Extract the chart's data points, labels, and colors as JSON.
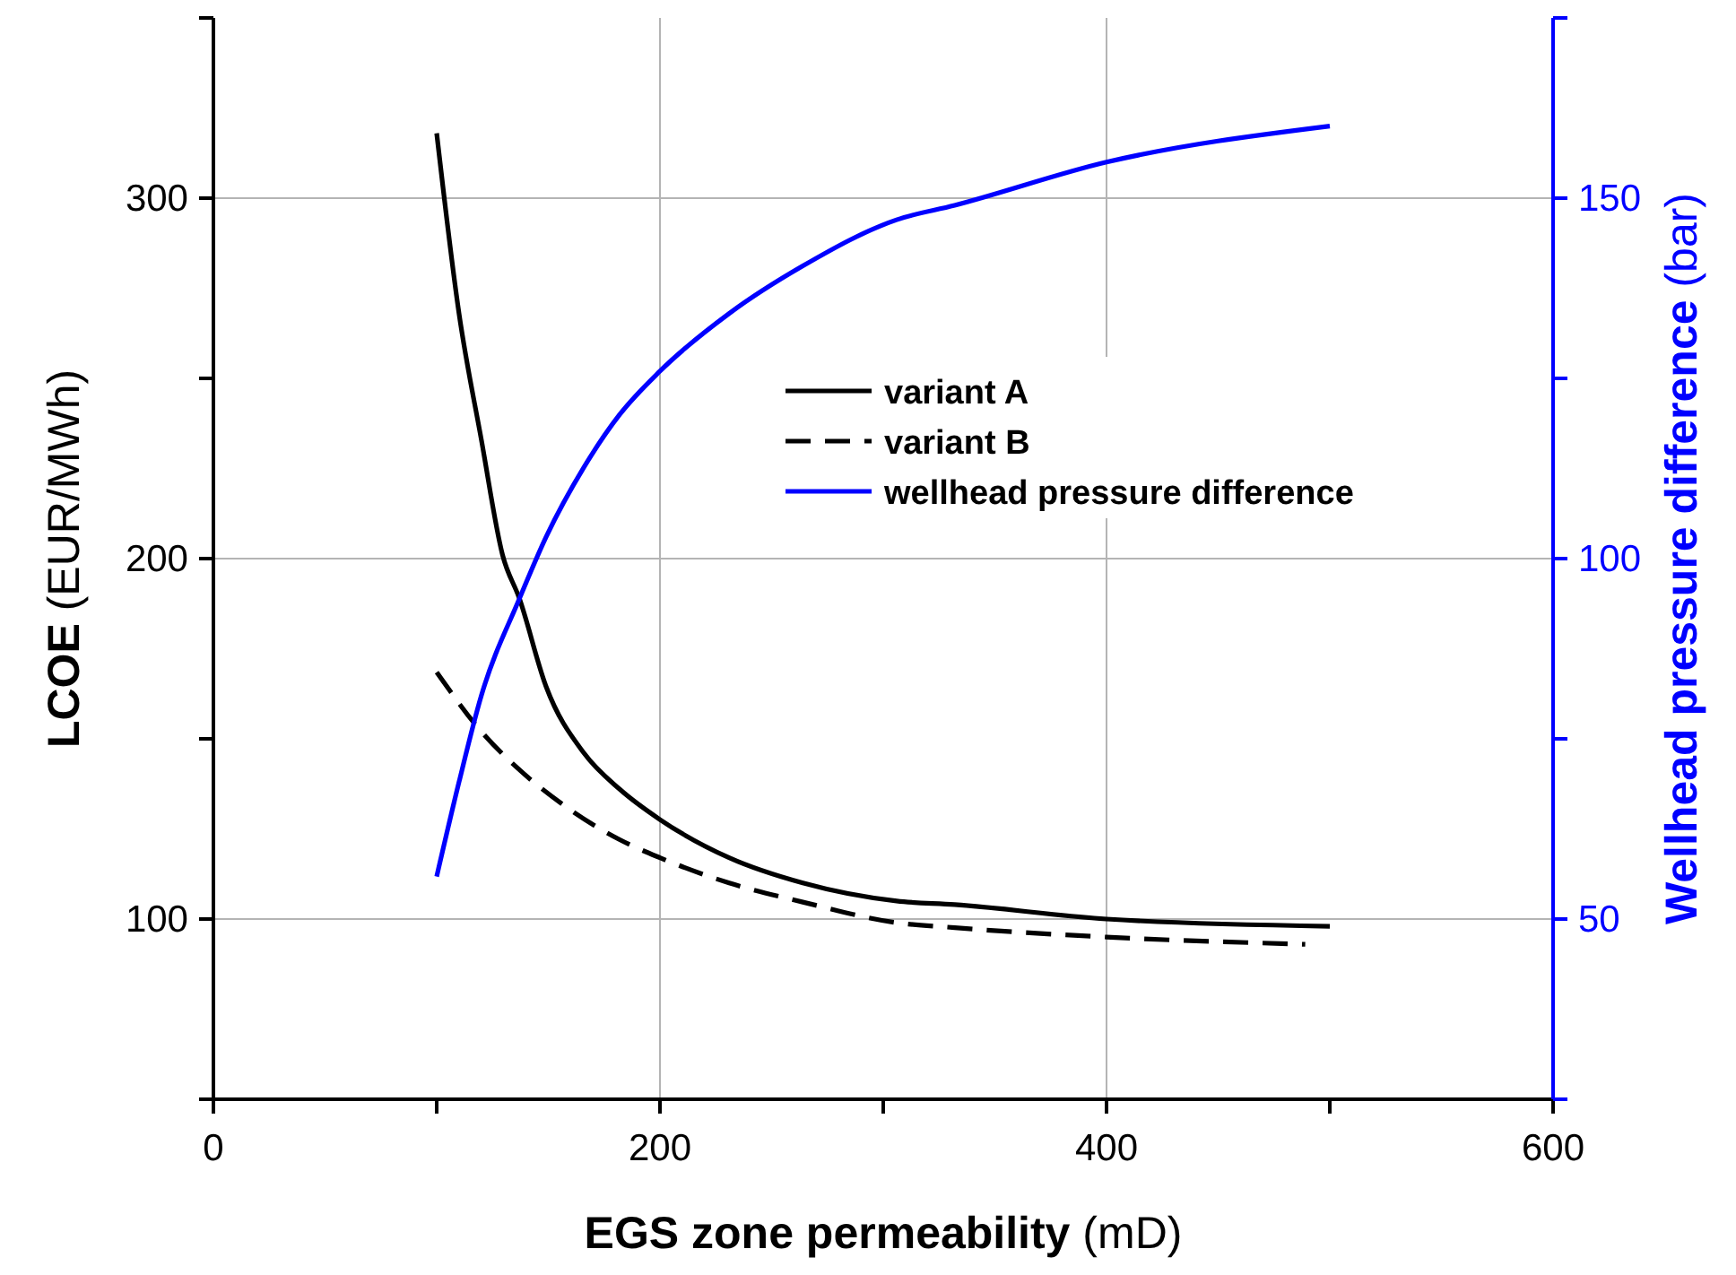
{
  "chart_data": {
    "type": "line",
    "xlabel": "EGS zone permeability (mD)",
    "ylabel": "LCOE (EUR/MWh)",
    "y2label": "Wellhead pressure difference (bar)",
    "xlim": [
      0,
      600
    ],
    "xticks": [
      0,
      {
        "value": 100,
        "label": null
      },
      200,
      {
        "value": 300,
        "label": null
      },
      400,
      {
        "value": 500,
        "label": null
      },
      600
    ],
    "ylim": [
      50,
      350
    ],
    "yticks": [
      {
        "value": 50,
        "label": null
      },
      100,
      {
        "value": 150,
        "label": null
      },
      200,
      {
        "value": 250,
        "label": null
      },
      300,
      {
        "value": 350,
        "label": null
      }
    ],
    "y2lim": [
      25,
      175
    ],
    "y2ticks": [
      {
        "value": 25,
        "label": null
      },
      50,
      {
        "value": 75,
        "label": null
      },
      100,
      {
        "value": 125,
        "label": null
      },
      150,
      {
        "value": 175,
        "label": null
      }
    ],
    "grid": true,
    "legend": "top right",
    "marker": "none",
    "series": [
      {
        "name": "variant A",
        "color": "#000000",
        "line_style": "solid",
        "x": [
          100,
          110,
          120,
          129.5,
          137,
          149,
          166,
          182,
          200,
          231,
          264,
          306,
          332,
          400,
          500
        ],
        "values": [
          318,
          268,
          233,
          201,
          189,
          164.5,
          146,
          136,
          127.6,
          117,
          110,
          105,
          104,
          100,
          98
        ]
      },
      {
        "name": "variant B",
        "color": "#000000",
        "line_style": "dashed",
        "x": [
          100,
          120,
          136,
          156,
          182,
          200,
          231,
          264,
          306,
          332,
          400,
          489
        ],
        "values": [
          168.5,
          152,
          142,
          132,
          122,
          117,
          110,
          104.7,
          99,
          97.6,
          95,
          93
        ]
      },
      {
        "name": "wellhead pressure difference",
        "color": "#0000ff",
        "axis": "y2",
        "line_style": "solid",
        "x": [
          100,
          110,
          120,
          137,
          149,
          166,
          182,
          200,
          231,
          264,
          306,
          332,
          400,
          500
        ],
        "values": [
          55.9,
          69,
          81,
          94.4,
          103,
          112.7,
          120,
          126,
          134,
          140.6,
          147,
          149,
          155,
          160
        ]
      }
    ]
  }
}
